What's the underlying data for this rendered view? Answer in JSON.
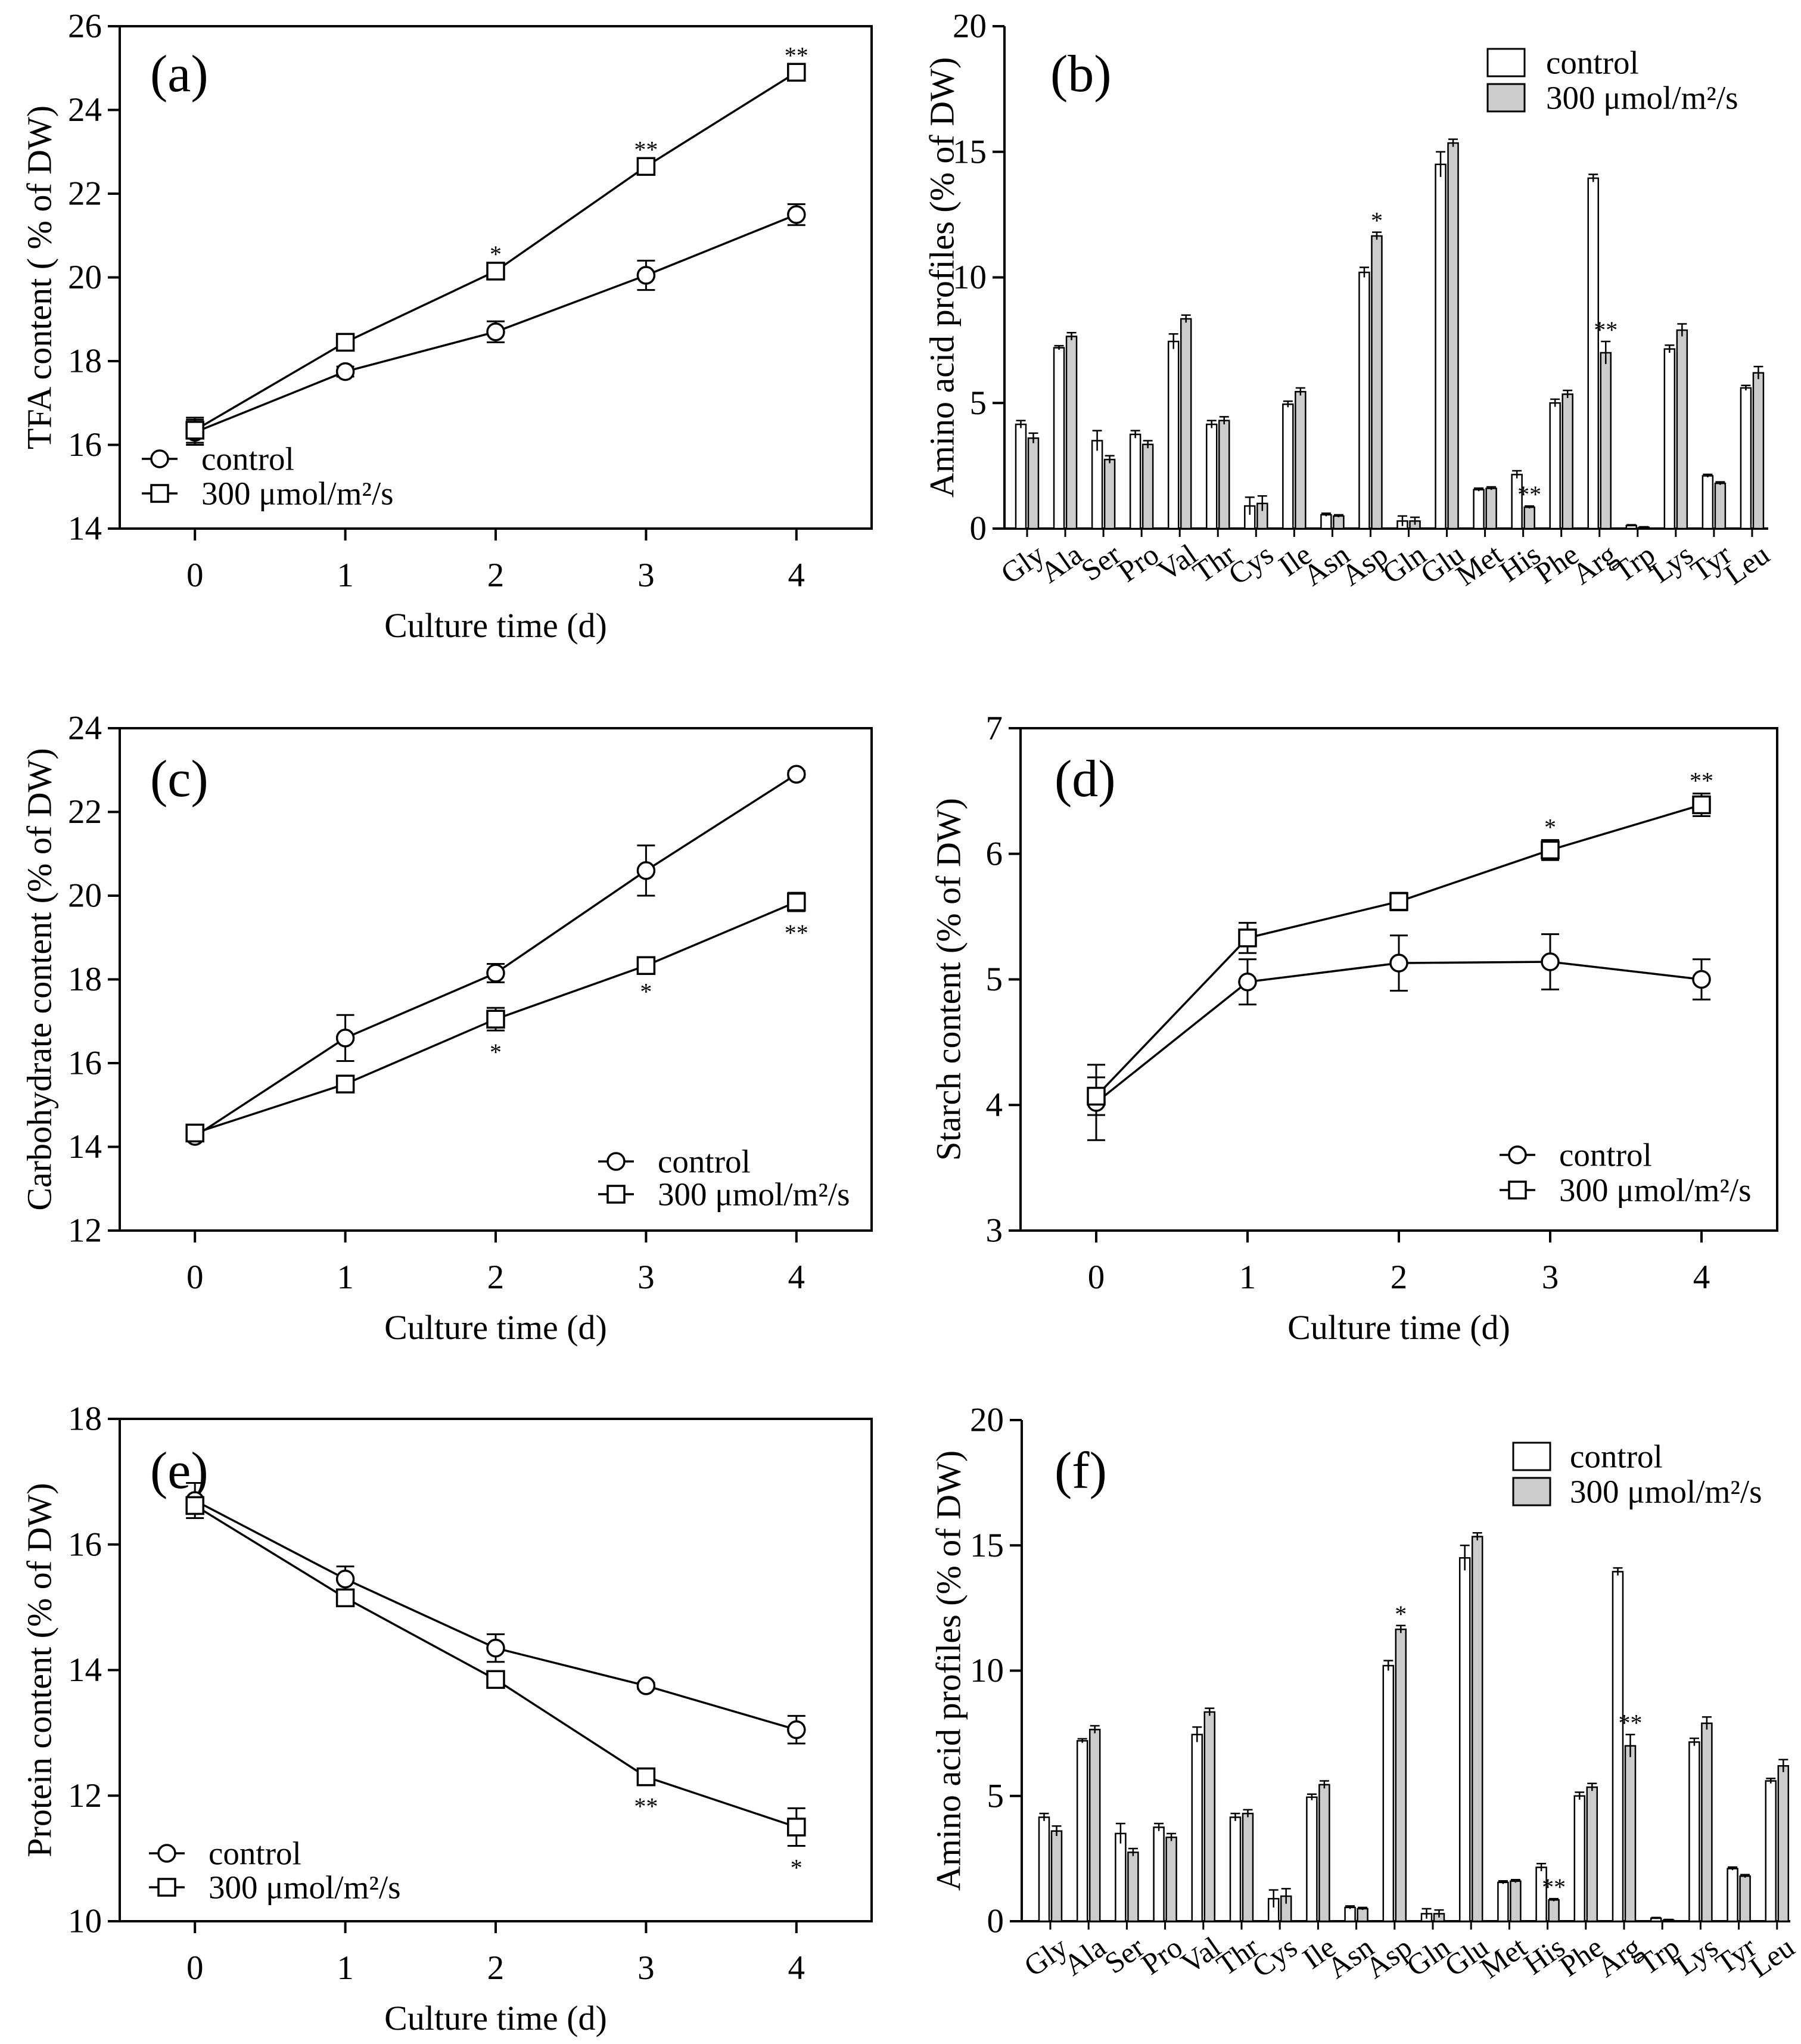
{
  "chart_data": [
    {
      "panel_label": "(a)",
      "type": "line",
      "xlabel": "Culture time (d)",
      "ylabel": "TFA content ( % of DW)",
      "x": [
        0,
        1,
        2,
        3,
        4
      ],
      "xlim": [
        -0.5,
        4.5
      ],
      "ylim": [
        14,
        26
      ],
      "yticks": [
        14,
        16,
        18,
        20,
        22,
        24,
        26
      ],
      "legend": "bottom-left",
      "series": [
        {
          "name": "control",
          "values": [
            16.3,
            17.75,
            18.7,
            20.05,
            21.5
          ],
          "errors": [
            0.3,
            0.12,
            0.25,
            0.35,
            0.25
          ],
          "significance": [
            "",
            "",
            "",
            "",
            ""
          ]
        },
        {
          "name": "300 μmol/m²/s",
          "values": [
            16.35,
            18.45,
            20.15,
            22.65,
            24.9
          ],
          "errors": [
            0.3,
            0.1,
            0.1,
            0.1,
            0.1
          ],
          "significance": [
            "",
            "",
            "*",
            "**",
            "**"
          ]
        }
      ]
    },
    {
      "panel_label": "(b)",
      "type": "bar",
      "ylabel": "Amino acid profiles (% of DW)",
      "categories": [
        "Gly",
        "Ala",
        "Ser",
        "Pro",
        "Val",
        "Thr",
        "Cys",
        "Ile",
        "Asn",
        "Asp",
        "Gln",
        "Glu",
        "Met",
        "His",
        "Phe",
        "Arg",
        "Trp",
        "Lys",
        "Tyr",
        "Leu"
      ],
      "ylim": [
        0,
        20
      ],
      "yticks": [
        0,
        5,
        10,
        15,
        20
      ],
      "legend": "top-right",
      "series": [
        {
          "name": "control",
          "fill": "#ffffff",
          "values": [
            4.15,
            7.2,
            3.5,
            3.75,
            7.45,
            4.15,
            0.9,
            4.95,
            0.55,
            10.2,
            0.3,
            14.5,
            1.55,
            2.15,
            5.0,
            13.95,
            0.12,
            7.15,
            2.1,
            5.6
          ],
          "errors": [
            0.15,
            0.08,
            0.4,
            0.15,
            0.3,
            0.15,
            0.35,
            0.12,
            0.06,
            0.2,
            0.2,
            0.5,
            0.06,
            0.15,
            0.15,
            0.15,
            0.03,
            0.15,
            0.06,
            0.1
          ],
          "significance": [
            "",
            "",
            "",
            "",
            "",
            "",
            "",
            "",
            "",
            "",
            "",
            "",
            "",
            "",
            "",
            "",
            "",
            "",
            "",
            ""
          ]
        },
        {
          "name": "300 μmol/m²/s",
          "fill": "#cccccc",
          "values": [
            3.6,
            7.65,
            2.75,
            3.35,
            8.35,
            4.3,
            1.0,
            5.45,
            0.5,
            11.65,
            0.3,
            15.35,
            1.6,
            0.85,
            5.35,
            7.0,
            0.05,
            7.9,
            1.8,
            6.2
          ],
          "errors": [
            0.2,
            0.15,
            0.15,
            0.15,
            0.15,
            0.15,
            0.3,
            0.15,
            0.05,
            0.15,
            0.15,
            0.15,
            0.06,
            0.05,
            0.15,
            0.45,
            0.02,
            0.25,
            0.06,
            0.25
          ],
          "significance": [
            "",
            "",
            "",
            "",
            "",
            "",
            "",
            "",
            "",
            "*",
            "",
            "",
            "",
            "**",
            "",
            "**",
            "",
            "",
            "",
            ""
          ]
        }
      ]
    },
    {
      "panel_label": "(c)",
      "type": "line",
      "xlabel": "Culture time (d)",
      "ylabel": "Carbohydrate content (% of DW)",
      "x": [
        0,
        1,
        2,
        3,
        4
      ],
      "xlim": [
        -0.5,
        4.5
      ],
      "ylim": [
        12,
        24
      ],
      "yticks": [
        12,
        14,
        16,
        18,
        20,
        22,
        24
      ],
      "legend": "bottom-right",
      "series": [
        {
          "name": "control",
          "values": [
            14.25,
            16.6,
            18.15,
            20.6,
            22.9
          ],
          "errors": [
            0.1,
            0.55,
            0.22,
            0.6,
            0.08
          ],
          "significance": [
            "",
            "",
            "",
            "",
            ""
          ]
        },
        {
          "name": "300 μmol/m²/s",
          "values": [
            14.33,
            15.5,
            17.05,
            18.33,
            19.85
          ],
          "errors": [
            0.1,
            0.17,
            0.27,
            0.1,
            0.22
          ],
          "significance": [
            "",
            "",
            "*",
            "*",
            "**"
          ]
        }
      ]
    },
    {
      "panel_label": "(d)",
      "type": "line",
      "xlabel": "Culture time (d)",
      "ylabel": "Starch content (% of DW)",
      "x": [
        0,
        1,
        2,
        3,
        4
      ],
      "xlim": [
        -0.5,
        4.5
      ],
      "ylim": [
        3,
        7
      ],
      "yticks": [
        3,
        4,
        5,
        6,
        7
      ],
      "legend": "bottom-right",
      "series": [
        {
          "name": "control",
          "values": [
            4.02,
            4.98,
            5.13,
            5.14,
            5.0
          ],
          "errors": [
            0.3,
            0.18,
            0.22,
            0.22,
            0.16
          ],
          "significance": [
            "",
            "",
            "",
            "",
            ""
          ]
        },
        {
          "name": "300 μmol/m²/s",
          "values": [
            4.07,
            5.33,
            5.62,
            6.03,
            6.39
          ],
          "errors": [
            0.15,
            0.12,
            0.07,
            0.08,
            0.09
          ],
          "significance": [
            "",
            "",
            "",
            "*",
            "**"
          ]
        }
      ]
    },
    {
      "panel_label": "(e)",
      "type": "line",
      "xlabel": "Culture time (d)",
      "ylabel": "Protein content (% of DW)",
      "x": [
        0,
        1,
        2,
        3,
        4
      ],
      "xlim": [
        -0.5,
        4.5
      ],
      "ylim": [
        10,
        18
      ],
      "yticks": [
        10,
        12,
        14,
        16,
        18
      ],
      "legend": "bottom-left",
      "series": [
        {
          "name": "control",
          "values": [
            16.7,
            15.45,
            14.35,
            13.75,
            13.05
          ],
          "errors": [
            0.28,
            0.2,
            0.22,
            0.05,
            0.22
          ],
          "significance": [
            "",
            "",
            "",
            "",
            ""
          ]
        },
        {
          "name": "300 μmol/m²/s",
          "values": [
            16.62,
            15.15,
            13.85,
            12.3,
            11.5
          ],
          "errors": [
            0.1,
            0.08,
            0.08,
            0.12,
            0.3
          ],
          "significance": [
            "",
            "",
            "",
            "**",
            "*"
          ]
        }
      ]
    },
    {
      "panel_label": "(f)",
      "type": "bar",
      "ylabel": "Amino acid profiles (% of DW)",
      "categories": [
        "Gly",
        "Ala",
        "Ser",
        "Pro",
        "Val",
        "Thr",
        "Cys",
        "Ile",
        "Asn",
        "Asp",
        "Gln",
        "Glu",
        "Met",
        "His",
        "Phe",
        "Arg",
        "Trp",
        "Lys",
        "Tyr",
        "Leu"
      ],
      "ylim": [
        0,
        20
      ],
      "yticks": [
        0,
        5,
        10,
        15,
        20
      ],
      "legend": "top-right",
      "series": [
        {
          "name": "control",
          "fill": "#ffffff",
          "values": [
            4.15,
            7.2,
            3.5,
            3.75,
            7.45,
            4.15,
            0.9,
            4.95,
            0.55,
            10.2,
            0.3,
            14.5,
            1.55,
            2.15,
            5.0,
            13.95,
            0.12,
            7.15,
            2.1,
            5.6
          ],
          "errors": [
            0.15,
            0.08,
            0.4,
            0.15,
            0.3,
            0.15,
            0.35,
            0.12,
            0.06,
            0.2,
            0.2,
            0.5,
            0.06,
            0.15,
            0.15,
            0.15,
            0.03,
            0.15,
            0.06,
            0.1
          ],
          "significance": [
            "",
            "",
            "",
            "",
            "",
            "",
            "",
            "",
            "",
            "",
            "",
            "",
            "",
            "",
            "",
            "",
            "",
            "",
            "",
            ""
          ]
        },
        {
          "name": "300 μmol/m²/s",
          "fill": "#cccccc",
          "values": [
            3.6,
            7.65,
            2.75,
            3.35,
            8.35,
            4.3,
            1.0,
            5.45,
            0.5,
            11.65,
            0.3,
            15.35,
            1.6,
            0.85,
            5.35,
            7.0,
            0.05,
            7.9,
            1.8,
            6.2
          ],
          "errors": [
            0.2,
            0.15,
            0.15,
            0.15,
            0.15,
            0.15,
            0.3,
            0.15,
            0.05,
            0.15,
            0.15,
            0.15,
            0.06,
            0.05,
            0.15,
            0.45,
            0.02,
            0.25,
            0.06,
            0.25
          ],
          "significance": [
            "",
            "",
            "",
            "",
            "",
            "",
            "",
            "",
            "",
            "*",
            "",
            "",
            "",
            "**",
            "",
            "**",
            "",
            "",
            "",
            ""
          ]
        }
      ]
    }
  ]
}
